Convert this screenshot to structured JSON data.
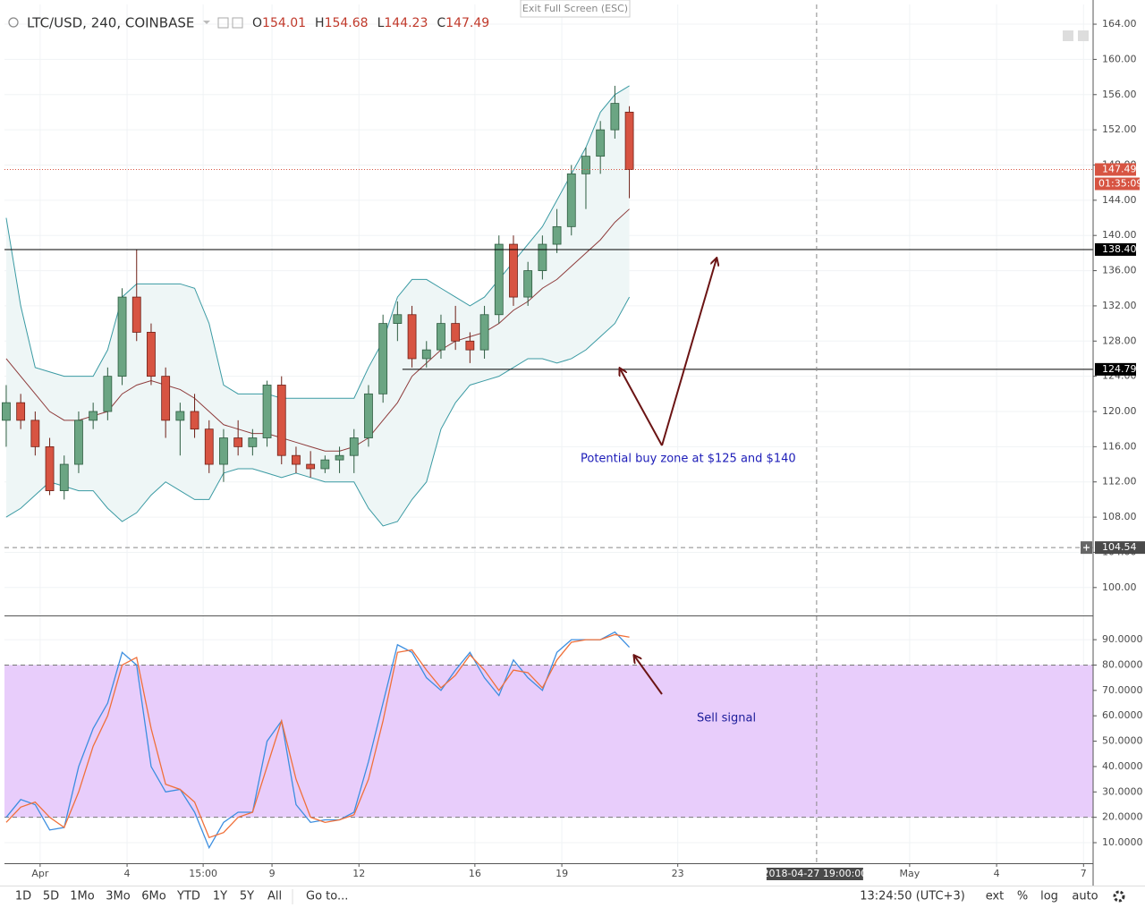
{
  "chart_data": [
    {
      "type": "candlestick",
      "title": "LTC/USD, 240, COINBASE",
      "ohlc_labels": [
        "O",
        "H",
        "L",
        "C"
      ],
      "x": [
        -0.17,
        0.33,
        0.83,
        1.33,
        1.83,
        2.33,
        2.83,
        3.33,
        3.83,
        4.33,
        4.83,
        5.33,
        5.83,
        6.33,
        6.83,
        7.33,
        7.83,
        8.33,
        8.83,
        9.33,
        9.83,
        10.33,
        10.83,
        11.33,
        11.83,
        12.33,
        12.83,
        13.33,
        13.83,
        14.33,
        14.83,
        15.33,
        15.83,
        16.33,
        16.83,
        17.33,
        17.83,
        18.33,
        18.83,
        19.33,
        19.83,
        20.33,
        20.83,
        21.33
      ],
      "open": [
        119,
        121,
        119,
        116,
        111,
        114,
        119,
        120,
        124,
        133,
        129,
        124,
        119,
        120,
        118,
        114,
        117,
        116,
        117,
        123,
        115,
        114,
        113.5,
        114.5,
        115,
        117,
        122,
        130,
        131,
        126,
        127,
        130,
        128,
        127,
        131,
        139,
        133,
        136,
        139,
        141,
        147,
        149,
        152,
        154.01
      ],
      "high": [
        123,
        122,
        120,
        117,
        115,
        120,
        121,
        125,
        134,
        138.4,
        130,
        125,
        121,
        122,
        119,
        118,
        119,
        118,
        123.5,
        124,
        116,
        115.5,
        115,
        116,
        118,
        123,
        131,
        132.5,
        132,
        128,
        131,
        132,
        129,
        132,
        140,
        140,
        137,
        140,
        143,
        148,
        150,
        153,
        157,
        154.68
      ],
      "low": [
        116,
        118,
        115,
        110.5,
        110,
        113,
        118,
        119,
        123,
        128,
        123,
        117,
        115,
        117,
        113,
        112,
        115,
        115,
        116,
        114,
        113,
        112.5,
        113,
        113,
        113,
        116,
        121,
        128,
        125,
        125,
        126,
        127,
        125.5,
        126,
        130,
        132,
        132,
        135,
        138,
        140,
        143,
        147,
        151,
        144.23
      ],
      "close": [
        121,
        119,
        116,
        111,
        114,
        119,
        120,
        124,
        133,
        129,
        124,
        119,
        120,
        118,
        114,
        117,
        116,
        117,
        123,
        115,
        114,
        113.5,
        114.5,
        115,
        117,
        122,
        130,
        131,
        126,
        127,
        130,
        128,
        127,
        131,
        139,
        133,
        136,
        139,
        141,
        147,
        149,
        152,
        155,
        147.49
      ],
      "up_color": "#6ba583",
      "down_color": "#d75442",
      "band_fill": "#eef6f6",
      "overlays": [
        {
          "color": "#3a9aa3",
          "values": [
            142,
            132,
            125,
            124.5,
            124,
            124,
            124,
            127,
            133,
            134.5,
            134.5,
            134.5,
            134.5,
            134,
            130,
            123,
            122,
            122,
            122,
            121.5,
            121.5,
            121.5,
            121.5,
            121.5,
            121.5,
            125,
            128,
            133,
            135,
            135,
            134,
            133,
            132,
            133,
            135,
            137,
            139,
            141,
            144,
            147,
            150,
            154,
            156,
            157
          ]
        },
        {
          "color": "#8e3b3b",
          "values": [
            126,
            124,
            122,
            120,
            119,
            119,
            119.5,
            120,
            122,
            123,
            123.5,
            123,
            122.5,
            121.5,
            120,
            118.5,
            118,
            117.5,
            117.5,
            117,
            116.5,
            116,
            115.5,
            115.5,
            116,
            117,
            119,
            121,
            124,
            125.5,
            127,
            128,
            128.5,
            129,
            130,
            131.5,
            132.5,
            134,
            135,
            136.5,
            138,
            139.5,
            141.5,
            143
          ]
        },
        {
          "color": "#3a9aa3",
          "values": [
            108,
            109,
            110.5,
            112,
            111.5,
            111,
            111,
            109,
            107.5,
            108.5,
            110.5,
            112,
            111,
            110,
            110,
            113,
            113.5,
            113.5,
            113,
            112.5,
            113,
            112.5,
            112,
            112,
            112,
            109,
            107,
            107.5,
            110,
            112,
            118,
            121,
            123,
            123.5,
            124,
            125,
            126,
            126,
            125.5,
            126,
            127,
            128.5,
            130,
            133
          ]
        }
      ],
      "xlim": [
        -0.23,
        37.33
      ],
      "xticks": [
        {
          "value": 1,
          "label": "Apr"
        },
        4,
        {
          "value": 6.625,
          "label": "15:00"
        },
        9,
        12,
        16,
        19,
        23,
        {
          "value": 31,
          "label": "May"
        },
        {
          "value": 34,
          "label": "4"
        },
        {
          "value": 37,
          "label": "7"
        }
      ],
      "ylim": [
        96.83,
        166.24
      ],
      "yticks": [
        {
          "value": 100,
          "label": "100.00"
        },
        {
          "value": 104,
          "label": "104.00"
        },
        {
          "value": 108,
          "label": "108.00"
        },
        {
          "value": 112,
          "label": "112.00"
        },
        {
          "value": 116,
          "label": "116.00"
        },
        {
          "value": 120,
          "label": "120.00"
        },
        {
          "value": 124,
          "label": "124.00"
        },
        {
          "value": 128,
          "label": "128.00"
        },
        {
          "value": 132,
          "label": "132.00"
        },
        {
          "value": 136,
          "label": "136.00"
        },
        {
          "value": 140,
          "label": "140.00"
        },
        {
          "value": 144,
          "label": "144.00"
        },
        {
          "value": 148,
          "label": "148.00"
        },
        {
          "value": 152,
          "label": "152.00"
        },
        {
          "value": 156,
          "label": "156.00"
        },
        {
          "value": 160,
          "label": "160.00"
        },
        {
          "value": 164,
          "label": "164.00"
        }
      ],
      "grid": true,
      "levels": [
        {
          "value": 138.4,
          "label": "138.40",
          "color": "#000000"
        },
        {
          "value": 124.79,
          "color": "#000000",
          "x_start": 13.5
        }
      ],
      "last_price_color": "#d75442",
      "countdown": "01:35:09",
      "crosshair": {
        "x": 27.79,
        "y": 104.54,
        "x_label": "2018-04-27 19:00:00"
      },
      "annotations": [
        "Potential buy zone at $125 and $140"
      ]
    },
    {
      "type": "line",
      "series": [
        {
          "color": "#3c8ee0",
          "values": [
            20,
            27,
            25,
            15,
            16,
            40,
            55,
            65,
            85,
            80,
            40,
            30,
            31,
            22,
            8,
            18,
            22,
            22,
            50,
            58,
            25,
            18,
            19,
            19,
            22,
            42,
            65,
            88,
            85,
            75,
            70,
            78,
            85,
            75,
            68,
            82,
            75,
            70,
            85,
            90,
            90,
            90,
            93,
            87
          ]
        },
        {
          "color": "#f0703a",
          "values": [
            18,
            24,
            26,
            20,
            16,
            30,
            48,
            60,
            80,
            83,
            55,
            33,
            31,
            26,
            12,
            14,
            20,
            22,
            40,
            58,
            35,
            20,
            18,
            19,
            21,
            35,
            58,
            85,
            86,
            78,
            71,
            76,
            84,
            78,
            70,
            78,
            77,
            71,
            82,
            89,
            90,
            90,
            92,
            91
          ]
        }
      ],
      "ylim": [
        1.9,
        99.2
      ],
      "yticks": [
        {
          "value": 10,
          "label": "10.0000"
        },
        {
          "value": 20,
          "label": "20.0000"
        },
        {
          "value": 30,
          "label": "30.0000"
        },
        {
          "value": 40,
          "label": "40.0000"
        },
        {
          "value": 50,
          "label": "50.0000"
        },
        {
          "value": 60,
          "label": "60.0000"
        },
        {
          "value": 70,
          "label": "70.0000"
        },
        {
          "value": 80,
          "label": "80.0000"
        },
        {
          "value": 90,
          "label": "90.0000"
        }
      ],
      "bands": [
        20,
        80
      ],
      "band_color": "#e8cdfb",
      "annotations": [
        "Sell signal"
      ]
    }
  ],
  "fullscreen_button": "Exit Full Screen (ESC)",
  "toolbar": {
    "ranges": [
      "1D",
      "5D",
      "1Mo",
      "3Mo",
      "6Mo",
      "YTD",
      "1Y",
      "5Y",
      "All"
    ],
    "goto": "Go to...",
    "clock": "13:24:50 (UTC+3)",
    "options": [
      "ext",
      "%",
      "log",
      "auto"
    ]
  }
}
